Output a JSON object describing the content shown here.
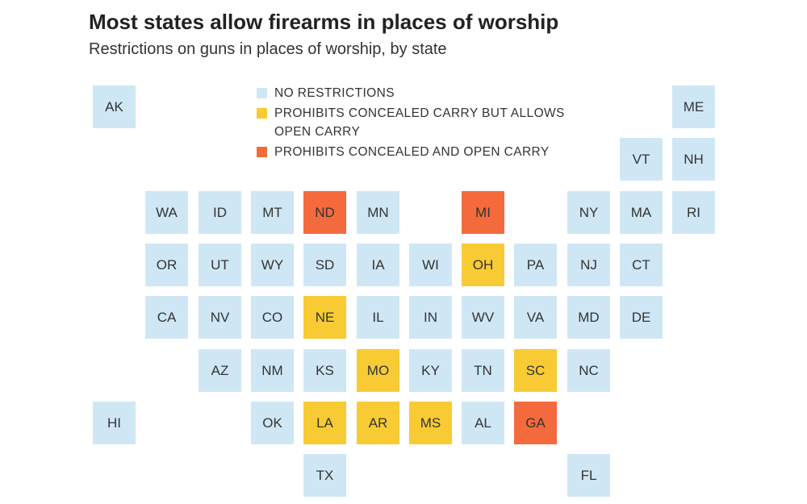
{
  "title": "Most states allow firearms in places of worship",
  "subtitle": "Restrictions on guns in places of worship, by state",
  "colors": {
    "none": "#cfe7f5",
    "concealed": "#f8cb34",
    "both": "#f46a3c"
  },
  "legend": [
    {
      "key": "none",
      "label": "NO RESTRICTIONS"
    },
    {
      "key": "concealed",
      "label": "PROHIBITS CONCEALED CARRY BUT ALLOWS OPEN CARRY"
    },
    {
      "key": "both",
      "label": "PROHIBITS CONCEALED AND OPEN CARRY"
    }
  ],
  "states": [
    {
      "abbr": "AK",
      "col": 0,
      "row": 0,
      "status": "none"
    },
    {
      "abbr": "ME",
      "col": 11,
      "row": 0,
      "status": "none"
    },
    {
      "abbr": "VT",
      "col": 10,
      "row": 1,
      "status": "none"
    },
    {
      "abbr": "NH",
      "col": 11,
      "row": 1,
      "status": "none"
    },
    {
      "abbr": "WA",
      "col": 1,
      "row": 2,
      "status": "none"
    },
    {
      "abbr": "ID",
      "col": 2,
      "row": 2,
      "status": "none"
    },
    {
      "abbr": "MT",
      "col": 3,
      "row": 2,
      "status": "none"
    },
    {
      "abbr": "ND",
      "col": 4,
      "row": 2,
      "status": "both"
    },
    {
      "abbr": "MN",
      "col": 5,
      "row": 2,
      "status": "none"
    },
    {
      "abbr": "MI",
      "col": 7,
      "row": 2,
      "status": "both"
    },
    {
      "abbr": "NY",
      "col": 9,
      "row": 2,
      "status": "none"
    },
    {
      "abbr": "MA",
      "col": 10,
      "row": 2,
      "status": "none"
    },
    {
      "abbr": "RI",
      "col": 11,
      "row": 2,
      "status": "none"
    },
    {
      "abbr": "OR",
      "col": 1,
      "row": 3,
      "status": "none"
    },
    {
      "abbr": "UT",
      "col": 2,
      "row": 3,
      "status": "none"
    },
    {
      "abbr": "WY",
      "col": 3,
      "row": 3,
      "status": "none"
    },
    {
      "abbr": "SD",
      "col": 4,
      "row": 3,
      "status": "none"
    },
    {
      "abbr": "IA",
      "col": 5,
      "row": 3,
      "status": "none"
    },
    {
      "abbr": "WI",
      "col": 6,
      "row": 3,
      "status": "none"
    },
    {
      "abbr": "OH",
      "col": 7,
      "row": 3,
      "status": "concealed"
    },
    {
      "abbr": "PA",
      "col": 8,
      "row": 3,
      "status": "none"
    },
    {
      "abbr": "NJ",
      "col": 9,
      "row": 3,
      "status": "none"
    },
    {
      "abbr": "CT",
      "col": 10,
      "row": 3,
      "status": "none"
    },
    {
      "abbr": "CA",
      "col": 1,
      "row": 4,
      "status": "none"
    },
    {
      "abbr": "NV",
      "col": 2,
      "row": 4,
      "status": "none"
    },
    {
      "abbr": "CO",
      "col": 3,
      "row": 4,
      "status": "none"
    },
    {
      "abbr": "NE",
      "col": 4,
      "row": 4,
      "status": "concealed"
    },
    {
      "abbr": "IL",
      "col": 5,
      "row": 4,
      "status": "none"
    },
    {
      "abbr": "IN",
      "col": 6,
      "row": 4,
      "status": "none"
    },
    {
      "abbr": "WV",
      "col": 7,
      "row": 4,
      "status": "none"
    },
    {
      "abbr": "VA",
      "col": 8,
      "row": 4,
      "status": "none"
    },
    {
      "abbr": "MD",
      "col": 9,
      "row": 4,
      "status": "none"
    },
    {
      "abbr": "DE",
      "col": 10,
      "row": 4,
      "status": "none"
    },
    {
      "abbr": "AZ",
      "col": 2,
      "row": 5,
      "status": "none"
    },
    {
      "abbr": "NM",
      "col": 3,
      "row": 5,
      "status": "none"
    },
    {
      "abbr": "KS",
      "col": 4,
      "row": 5,
      "status": "none"
    },
    {
      "abbr": "MO",
      "col": 5,
      "row": 5,
      "status": "concealed"
    },
    {
      "abbr": "KY",
      "col": 6,
      "row": 5,
      "status": "none"
    },
    {
      "abbr": "TN",
      "col": 7,
      "row": 5,
      "status": "none"
    },
    {
      "abbr": "SC",
      "col": 8,
      "row": 5,
      "status": "concealed"
    },
    {
      "abbr": "NC",
      "col": 9,
      "row": 5,
      "status": "none"
    },
    {
      "abbr": "HI",
      "col": 0,
      "row": 6,
      "status": "none"
    },
    {
      "abbr": "OK",
      "col": 3,
      "row": 6,
      "status": "none"
    },
    {
      "abbr": "LA",
      "col": 4,
      "row": 6,
      "status": "concealed"
    },
    {
      "abbr": "AR",
      "col": 5,
      "row": 6,
      "status": "concealed"
    },
    {
      "abbr": "MS",
      "col": 6,
      "row": 6,
      "status": "concealed"
    },
    {
      "abbr": "AL",
      "col": 7,
      "row": 6,
      "status": "none"
    },
    {
      "abbr": "GA",
      "col": 8,
      "row": 6,
      "status": "both"
    },
    {
      "abbr": "TX",
      "col": 4,
      "row": 7,
      "status": "none"
    },
    {
      "abbr": "FL",
      "col": 9,
      "row": 7,
      "status": "none"
    }
  ]
}
